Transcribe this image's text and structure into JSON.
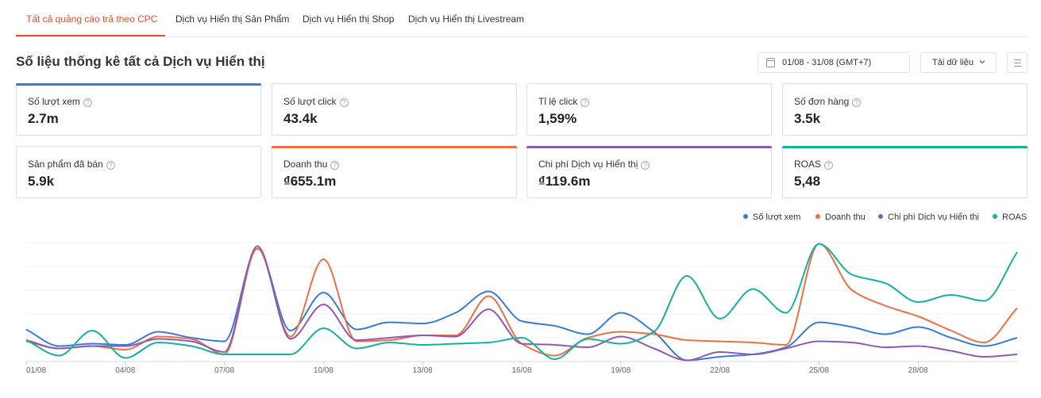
{
  "tabs": [
    {
      "label": "Tất cả quảng cáo trả theo CPC",
      "active": true
    },
    {
      "label": "Dịch vụ Hiển thị Sản Phẩm",
      "active": false
    },
    {
      "label": "Dịch vụ Hiển thị Shop",
      "active": false
    },
    {
      "label": "Dịch vụ Hiển thị Livestream",
      "active": false
    }
  ],
  "section": {
    "title": "Số liệu thống kê tất cả Dịch vụ Hiển thị"
  },
  "toolbar": {
    "date_range": "01/08 - 31/08 (GMT+7)",
    "download_label": "Tải dữ liệu",
    "icons": [
      "calendar-icon",
      "chevron-down-icon",
      "list-icon"
    ]
  },
  "metrics": [
    {
      "label": "Số lượt xem",
      "value": "2.7m",
      "color": "#3a7bd5"
    },
    {
      "label": "Số lượt click",
      "value": "43.4k",
      "color": ""
    },
    {
      "label": "Tỉ lệ click",
      "value": "1,59%",
      "color": ""
    },
    {
      "label": "Số đơn hàng",
      "value": "3.5k",
      "color": ""
    },
    {
      "label": "Sản phẩm đã bán",
      "value": "5.9k",
      "color": ""
    },
    {
      "label": "Doanh thu",
      "value": "₫655.1m",
      "color": "#ee6e45"
    },
    {
      "label": "Chi phí Dịch vụ Hiển thị",
      "value": "₫119.6m",
      "color": "#8e59b3"
    },
    {
      "label": "ROAS",
      "value": "5,48",
      "color": "#12b39a"
    }
  ],
  "chart_data": {
    "type": "line",
    "title": "",
    "xlabel": "",
    "ylabel": "",
    "x": [
      "01/08",
      "02/08",
      "03/08",
      "04/08",
      "05/08",
      "06/08",
      "07/08",
      "08/08",
      "09/08",
      "10/08",
      "11/08",
      "12/08",
      "13/08",
      "14/08",
      "15/08",
      "16/08",
      "17/08",
      "18/08",
      "19/08",
      "20/08",
      "21/08",
      "22/08",
      "23/08",
      "24/08",
      "25/08",
      "26/08",
      "27/08",
      "28/08",
      "29/08",
      "30/08",
      "31/08"
    ],
    "xticks": [
      "01/08",
      "04/08",
      "07/08",
      "10/08",
      "13/08",
      "16/08",
      "19/08",
      "22/08",
      "25/08",
      "28/08"
    ],
    "ylim": [
      0,
      100
    ],
    "y_axis_visible": false,
    "grid": true,
    "legend_position": "top-right",
    "series": [
      {
        "name": "Số lượt xem",
        "color": "#3a7bd5",
        "values": [
          27,
          13,
          15,
          14,
          25,
          20,
          17,
          95,
          26,
          58,
          27,
          33,
          32,
          41,
          59,
          34,
          30,
          23,
          41,
          25,
          1,
          4,
          6,
          12,
          33,
          29,
          23,
          29,
          20,
          13,
          20
        ]
      },
      {
        "name": "Doanh thu",
        "color": "#ee6e45",
        "values": [
          17,
          11,
          13,
          10,
          21,
          19,
          6,
          95,
          21,
          86,
          17,
          18,
          22,
          22,
          55,
          15,
          5,
          20,
          25,
          23,
          18,
          17,
          16,
          14,
          99,
          60,
          47,
          38,
          26,
          16,
          45
        ]
      },
      {
        "name": "Chi phí Dịch vụ Hiển thị",
        "color": "#8e59b3",
        "values": [
          18,
          11,
          13,
          13,
          19,
          17,
          8,
          97,
          19,
          48,
          18,
          20,
          22,
          21,
          44,
          15,
          14,
          12,
          21,
          11,
          1,
          8,
          6,
          11,
          17,
          16,
          12,
          13,
          9,
          4,
          6
        ]
      },
      {
        "name": "ROAS",
        "color": "#12b39a",
        "values": [
          18,
          5,
          26,
          3,
          16,
          13,
          6,
          6,
          6,
          28,
          11,
          16,
          14,
          15,
          16,
          20,
          2,
          19,
          15,
          25,
          72,
          36,
          61,
          41,
          99,
          73,
          66,
          50,
          56,
          51,
          92
        ]
      }
    ]
  }
}
